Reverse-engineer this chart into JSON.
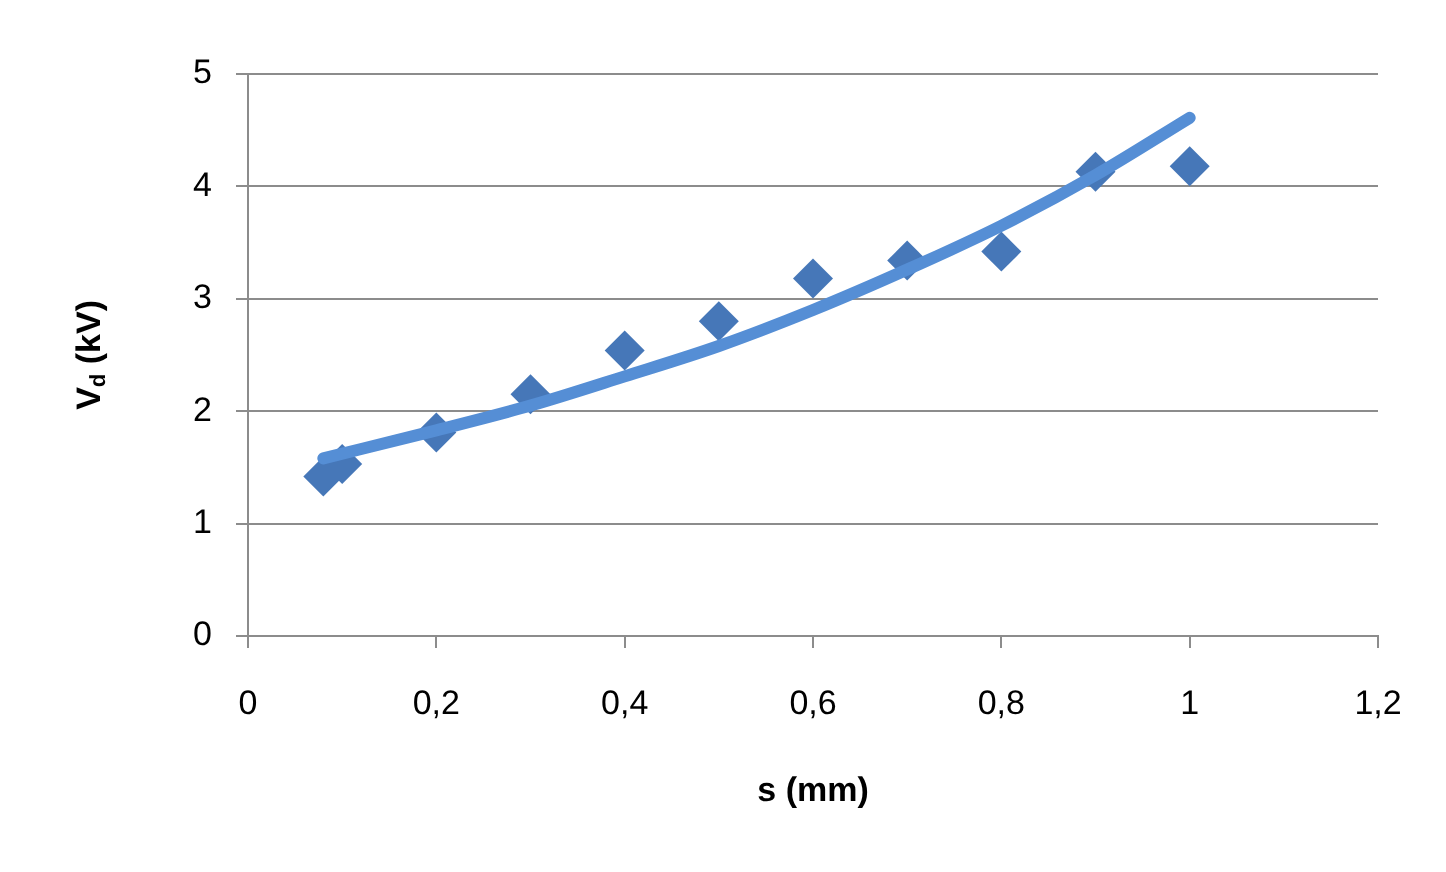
{
  "chart_data": {
    "type": "scatter",
    "xlabel": "s (mm)",
    "ylabel": "V$_{d}$ (kV)",
    "series": [
      {
        "type": "scatter",
        "color": "#4677b8",
        "marker": "diamond",
        "x": [
          0.08,
          0.1,
          0.2,
          0.3,
          0.4,
          0.5,
          0.6,
          0.7,
          0.8,
          0.9,
          1.0
        ],
        "values": [
          1.42,
          1.53,
          1.81,
          2.15,
          2.54,
          2.8,
          3.18,
          3.34,
          3.42,
          4.13,
          4.18
        ]
      },
      {
        "type": "line",
        "color": "#558ed5",
        "marker": "none",
        "x": [
          0.08,
          0.2,
          0.3,
          0.4,
          0.5,
          0.6,
          0.7,
          0.8,
          0.9,
          1.0
        ],
        "values": [
          1.58,
          1.83,
          2.05,
          2.31,
          2.58,
          2.9,
          3.26,
          3.65,
          4.1,
          4.61
        ]
      }
    ],
    "xlim": [
      0,
      1.2
    ],
    "xticks": [
      0,
      {
        "value": 0.2,
        "label": "0,2"
      },
      {
        "value": 0.4,
        "label": "0,4"
      },
      {
        "value": 0.6,
        "label": "0,6"
      },
      {
        "value": 0.8,
        "label": "0,8"
      },
      1,
      {
        "value": 1.2,
        "label": "1,2"
      }
    ],
    "ylim": [
      0,
      5
    ],
    "yticks": [
      0,
      1,
      2,
      3,
      4,
      5
    ],
    "grid": "y"
  }
}
